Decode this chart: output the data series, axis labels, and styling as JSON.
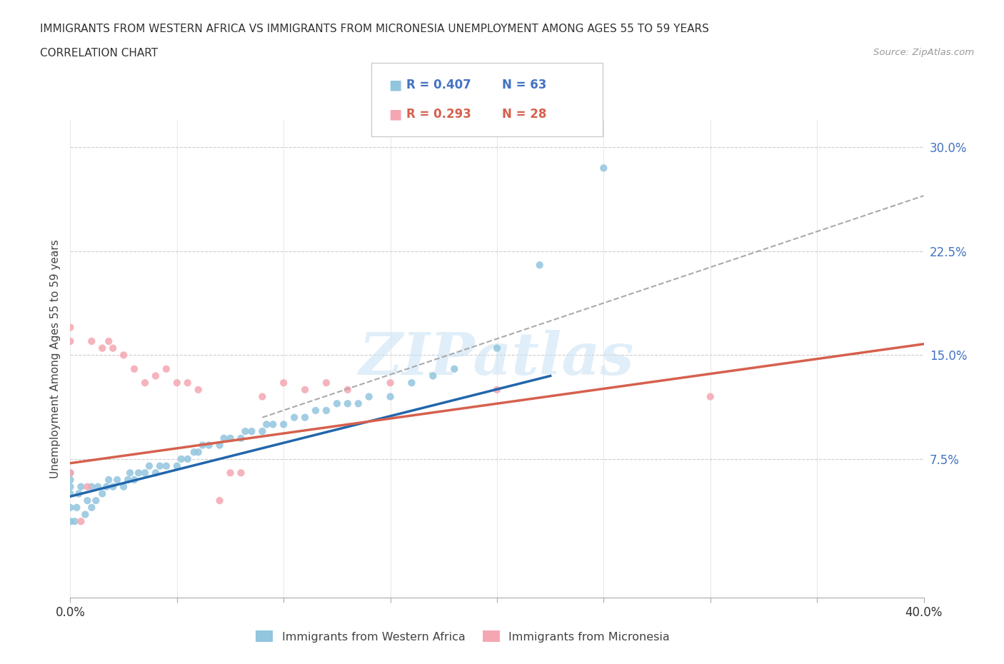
{
  "title_line1": "IMMIGRANTS FROM WESTERN AFRICA VS IMMIGRANTS FROM MICRONESIA UNEMPLOYMENT AMONG AGES 55 TO 59 YEARS",
  "title_line2": "CORRELATION CHART",
  "source_text": "Source: ZipAtlas.com",
  "ylabel": "Unemployment Among Ages 55 to 59 years",
  "xlim": [
    0.0,
    0.4
  ],
  "ylim": [
    -0.025,
    0.32
  ],
  "ytick_positions": [
    0.075,
    0.15,
    0.225,
    0.3
  ],
  "ytick_labels": [
    "7.5%",
    "15.0%",
    "22.5%",
    "30.0%"
  ],
  "color_wa": "#92c5de",
  "color_mic": "#f4a7b2",
  "trendline_wa_color": "#2166ac",
  "trendline_mic_color": "#d6604d",
  "trendline_dashed_color": "#aaaaaa",
  "legend_r_wa": "R = 0.407",
  "legend_n_wa": "N = 63",
  "legend_r_mic": "R = 0.293",
  "legend_n_mic": "N = 28",
  "watermark": "ZIPatlas",
  "wa_x": [
    0.0,
    0.0,
    0.0,
    0.0,
    0.0,
    0.0,
    0.002,
    0.003,
    0.004,
    0.005,
    0.007,
    0.008,
    0.01,
    0.01,
    0.012,
    0.013,
    0.015,
    0.017,
    0.018,
    0.02,
    0.022,
    0.025,
    0.027,
    0.028,
    0.03,
    0.032,
    0.035,
    0.037,
    0.04,
    0.042,
    0.045,
    0.05,
    0.052,
    0.055,
    0.058,
    0.06,
    0.062,
    0.065,
    0.07,
    0.072,
    0.075,
    0.08,
    0.082,
    0.085,
    0.09,
    0.092,
    0.095,
    0.1,
    0.105,
    0.11,
    0.115,
    0.12,
    0.125,
    0.13,
    0.135,
    0.14,
    0.15,
    0.16,
    0.17,
    0.18,
    0.2,
    0.22,
    0.25
  ],
  "wa_y": [
    0.03,
    0.04,
    0.05,
    0.055,
    0.06,
    0.065,
    0.03,
    0.04,
    0.05,
    0.055,
    0.035,
    0.045,
    0.04,
    0.055,
    0.045,
    0.055,
    0.05,
    0.055,
    0.06,
    0.055,
    0.06,
    0.055,
    0.06,
    0.065,
    0.06,
    0.065,
    0.065,
    0.07,
    0.065,
    0.07,
    0.07,
    0.07,
    0.075,
    0.075,
    0.08,
    0.08,
    0.085,
    0.085,
    0.085,
    0.09,
    0.09,
    0.09,
    0.095,
    0.095,
    0.095,
    0.1,
    0.1,
    0.1,
    0.105,
    0.105,
    0.11,
    0.11,
    0.115,
    0.115,
    0.115,
    0.12,
    0.12,
    0.13,
    0.135,
    0.14,
    0.155,
    0.215,
    0.285
  ],
  "mic_x": [
    0.0,
    0.0,
    0.0,
    0.005,
    0.008,
    0.01,
    0.015,
    0.018,
    0.02,
    0.025,
    0.03,
    0.035,
    0.04,
    0.045,
    0.05,
    0.055,
    0.06,
    0.07,
    0.075,
    0.08,
    0.09,
    0.1,
    0.11,
    0.12,
    0.13,
    0.15,
    0.2,
    0.3
  ],
  "mic_y": [
    0.065,
    0.16,
    0.17,
    0.03,
    0.055,
    0.16,
    0.155,
    0.16,
    0.155,
    0.15,
    0.14,
    0.13,
    0.135,
    0.14,
    0.13,
    0.13,
    0.125,
    0.045,
    0.065,
    0.065,
    0.12,
    0.13,
    0.125,
    0.13,
    0.125,
    0.13,
    0.125,
    0.12
  ],
  "wa_trend_x": [
    0.0,
    0.225
  ],
  "wa_trend_y": [
    0.048,
    0.135
  ],
  "mic_trend_x": [
    0.0,
    0.4
  ],
  "mic_trend_y": [
    0.072,
    0.158
  ],
  "dashed_trend_x": [
    0.09,
    0.4
  ],
  "dashed_trend_y": [
    0.105,
    0.265
  ]
}
